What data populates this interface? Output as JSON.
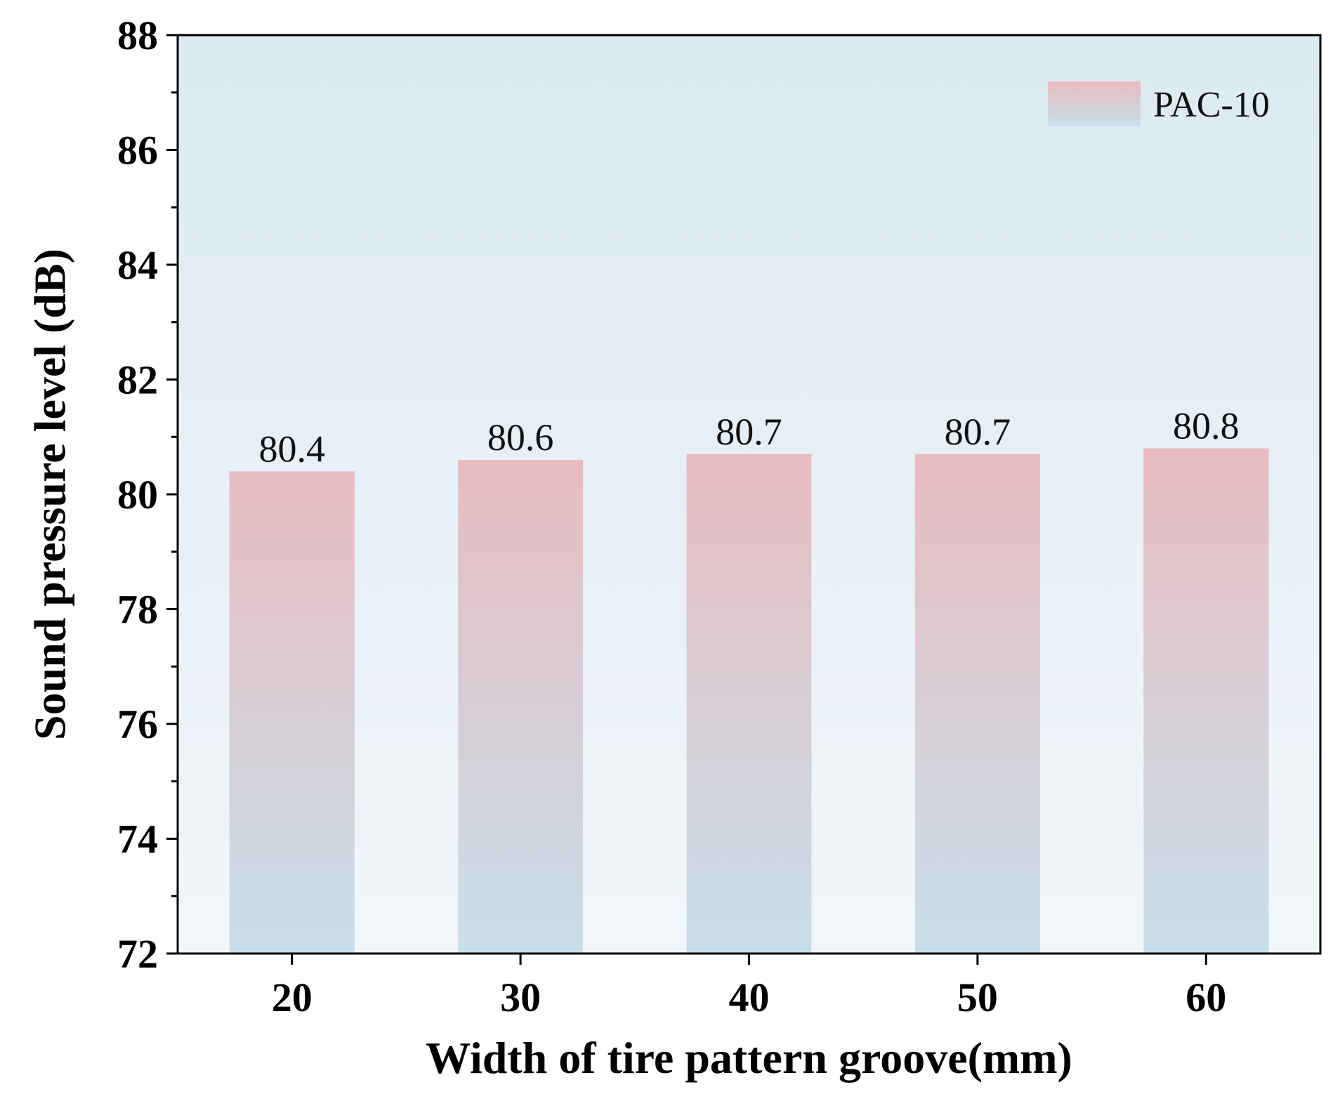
{
  "chart_data": {
    "type": "bar",
    "title": "",
    "xlabel": "Width of tire pattern groove(mm)",
    "ylabel": "Sound pressure level (dB)",
    "categories": [
      "20",
      "30",
      "40",
      "50",
      "60"
    ],
    "series": [
      {
        "name": "PAC-10",
        "values": [
          80.4,
          80.6,
          80.7,
          80.7,
          80.8
        ]
      }
    ],
    "data_labels": [
      "80.4",
      "80.6",
      "80.7",
      "80.7",
      "80.8"
    ],
    "ylim": [
      72,
      88
    ],
    "yticks": [
      72,
      74,
      76,
      78,
      80,
      82,
      84,
      86,
      88
    ],
    "ytick_labels": [
      "72",
      "74",
      "76",
      "78",
      "80",
      "82",
      "84",
      "86",
      "88"
    ],
    "legend": {
      "position": "top-right",
      "label": "PAC-10"
    },
    "grid": false,
    "colors": {
      "bar_top": "#e8bcc0",
      "bar_bottom": "#c8dfea",
      "plot_bg_top": "#dceaf2",
      "plot_bg_bottom": "#f2f6fa",
      "axis": "#000000"
    }
  }
}
